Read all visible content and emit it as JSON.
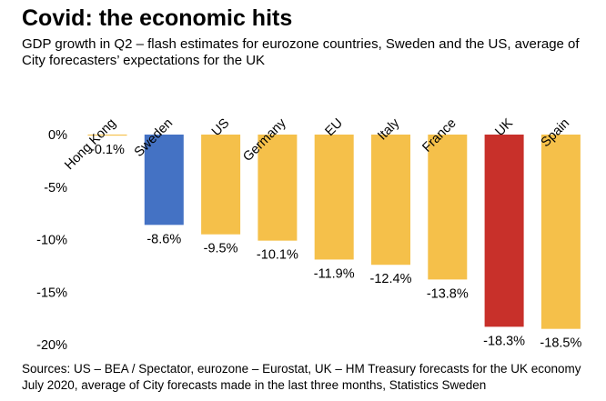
{
  "title": "Covid: the economic hits",
  "subtitle": "GDP growth in Q2 – flash estimates for eurozone countries, Sweden and the US, average of City forecasters’ expectations for the UK",
  "source": "Sources: US – BEA / Spectator, eurozone – Eurostat, UK – HM Treasury forecasts for the UK economy July 2020, average of City forecasts made in the last three months, Statistics Sweden",
  "chart_data": {
    "type": "bar",
    "categories": [
      "Hong Kong",
      "Sweden",
      "US",
      "Germany",
      "EU",
      "Italy",
      "France",
      "UK",
      "Spain"
    ],
    "values": [
      -0.1,
      -8.6,
      -9.5,
      -10.1,
      -11.9,
      -12.4,
      -13.8,
      -18.3,
      -18.5
    ],
    "value_labels": [
      "-0.1%",
      "-8.6%",
      "-9.5%",
      "-10.1%",
      "-11.9%",
      "-12.4%",
      "-13.8%",
      "-18.3%",
      "-18.5%"
    ],
    "colors": [
      "#f5c04a",
      "#4472c4",
      "#f5c04a",
      "#f5c04a",
      "#f5c04a",
      "#f5c04a",
      "#f5c04a",
      "#c8302a",
      "#f5c04a"
    ],
    "yticks": [
      0,
      -5,
      -10,
      -15,
      -20
    ],
    "ytick_labels": [
      "0%",
      "-5%",
      "-10%",
      "-15%",
      "-20%"
    ],
    "ylim": [
      -20,
      0
    ],
    "grid": false,
    "legend": "none"
  }
}
